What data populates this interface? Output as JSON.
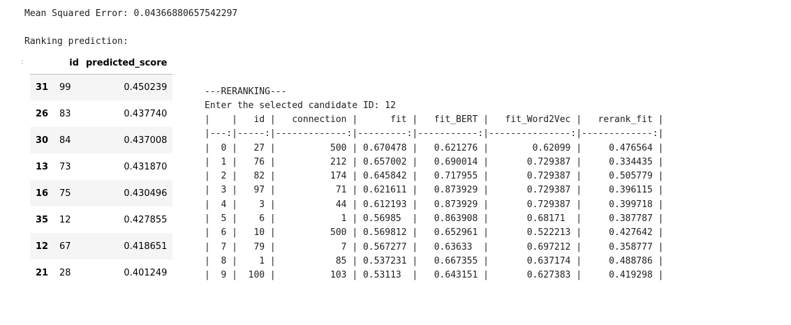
{
  "mse": "Mean Squared Error: 0.04366880657542297",
  "ranking_label": "Ranking prediction:",
  "prompt_marker": ":",
  "dataframe": {
    "columns": [
      "",
      "id",
      "predicted_score"
    ],
    "rows": [
      {
        "index": "31",
        "id": "99",
        "score": "0.450239"
      },
      {
        "index": "26",
        "id": "83",
        "score": "0.437740"
      },
      {
        "index": "30",
        "id": "84",
        "score": "0.437008"
      },
      {
        "index": "13",
        "id": "73",
        "score": "0.431870"
      },
      {
        "index": "16",
        "id": "75",
        "score": "0.430496"
      },
      {
        "index": "35",
        "id": "12",
        "score": "0.427855"
      },
      {
        "index": "12",
        "id": "67",
        "score": "0.418651"
      },
      {
        "index": "21",
        "id": "28",
        "score": "0.401249"
      }
    ]
  },
  "rerank": {
    "header": "---RERANKING---",
    "prompt": "Enter the selected candidate ID: 12",
    "table_lines": [
      "|    |   id |   connection |      fit |   fit_BERT |   fit_Word2Vec |   rerank_fit |",
      "|---:|-----:|-------------:|---------:|-----------:|---------------:|-------------:|",
      "|  0 |   27 |          500 | 0.670478 |   0.621276 |        0.62099 |     0.476564 |",
      "|  1 |   76 |          212 | 0.657002 |   0.690014 |       0.729387 |     0.334435 |",
      "|  2 |   82 |          174 | 0.645842 |   0.717955 |       0.729387 |     0.505779 |",
      "|  3 |   97 |           71 | 0.621611 |   0.873929 |       0.729387 |     0.396115 |",
      "|  4 |    3 |           44 | 0.612193 |   0.873929 |       0.729387 |     0.399718 |",
      "|  5 |    6 |            1 | 0.56985  |   0.863908 |       0.68171  |     0.387787 |",
      "|  6 |   10 |          500 | 0.569812 |   0.652961 |       0.522213 |     0.427642 |",
      "|  7 |   79 |            7 | 0.567277 |   0.63633  |       0.697212 |     0.358777 |",
      "|  8 |    1 |           85 | 0.537231 |   0.667355 |       0.637174 |     0.488786 |",
      "|  9 |  100 |          103 | 0.53113  |   0.643151 |       0.627383 |     0.419298 |"
    ]
  }
}
